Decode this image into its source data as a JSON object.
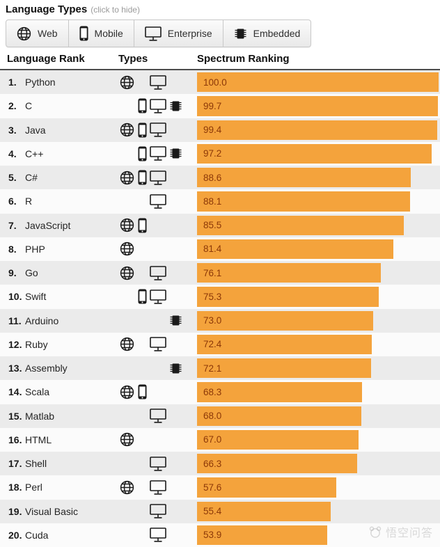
{
  "header": {
    "title": "Language Types",
    "subtitle": "(click to hide)"
  },
  "filters": [
    {
      "label": "Web",
      "icon": "web-icon"
    },
    {
      "label": "Mobile",
      "icon": "mobile-icon"
    },
    {
      "label": "Enterprise",
      "icon": "enterprise-icon"
    },
    {
      "label": "Embedded",
      "icon": "embedded-icon"
    }
  ],
  "columns": {
    "language_rank": "Language Rank",
    "types": "Types",
    "spectrum_ranking": "Spectrum Ranking"
  },
  "colors": {
    "bar": "#f4a33c",
    "bar_label": "#8c3808",
    "row_stripe": "#ebebeb",
    "row_plain": "#fbfbfb"
  },
  "watermark": {
    "text": "悟空问答"
  },
  "chart_data": {
    "type": "bar",
    "orientation": "horizontal",
    "title": "Spectrum Ranking",
    "xlabel": "",
    "ylabel": "",
    "xlim": [
      0,
      100
    ],
    "grid": false,
    "categories": [
      "Python",
      "C",
      "Java",
      "C++",
      "C#",
      "R",
      "JavaScript",
      "PHP",
      "Go",
      "Swift",
      "Arduino",
      "Ruby",
      "Assembly",
      "Scala",
      "Matlab",
      "HTML",
      "Shell",
      "Perl",
      "Visual Basic",
      "Cuda"
    ],
    "values": [
      100.0,
      99.7,
      99.4,
      97.2,
      88.6,
      88.1,
      85.5,
      81.4,
      76.1,
      75.3,
      73.0,
      72.4,
      72.1,
      68.3,
      68.0,
      67.0,
      66.3,
      57.6,
      55.4,
      53.9
    ],
    "rows": [
      {
        "rank": "1.",
        "name": "Python",
        "types": [
          "web",
          "enterprise"
        ],
        "value": 100.0
      },
      {
        "rank": "2.",
        "name": "C",
        "types": [
          "mobile",
          "enterprise",
          "embedded"
        ],
        "value": 99.7
      },
      {
        "rank": "3.",
        "name": "Java",
        "types": [
          "web",
          "mobile",
          "enterprise"
        ],
        "value": 99.4
      },
      {
        "rank": "4.",
        "name": "C++",
        "types": [
          "mobile",
          "enterprise",
          "embedded"
        ],
        "value": 97.2
      },
      {
        "rank": "5.",
        "name": "C#",
        "types": [
          "web",
          "mobile",
          "enterprise"
        ],
        "value": 88.6
      },
      {
        "rank": "6.",
        "name": "R",
        "types": [
          "enterprise"
        ],
        "value": 88.1
      },
      {
        "rank": "7.",
        "name": "JavaScript",
        "types": [
          "web",
          "mobile"
        ],
        "value": 85.5
      },
      {
        "rank": "8.",
        "name": "PHP",
        "types": [
          "web"
        ],
        "value": 81.4
      },
      {
        "rank": "9.",
        "name": "Go",
        "types": [
          "web",
          "enterprise"
        ],
        "value": 76.1
      },
      {
        "rank": "10.",
        "name": "Swift",
        "types": [
          "mobile",
          "enterprise"
        ],
        "value": 75.3
      },
      {
        "rank": "11.",
        "name": "Arduino",
        "types": [
          "embedded"
        ],
        "value": 73.0
      },
      {
        "rank": "12.",
        "name": "Ruby",
        "types": [
          "web",
          "enterprise"
        ],
        "value": 72.4
      },
      {
        "rank": "13.",
        "name": "Assembly",
        "types": [
          "embedded"
        ],
        "value": 72.1
      },
      {
        "rank": "14.",
        "name": "Scala",
        "types": [
          "web",
          "mobile"
        ],
        "value": 68.3
      },
      {
        "rank": "15.",
        "name": "Matlab",
        "types": [
          "enterprise"
        ],
        "value": 68.0
      },
      {
        "rank": "16.",
        "name": "HTML",
        "types": [
          "web"
        ],
        "value": 67.0
      },
      {
        "rank": "17.",
        "name": "Shell",
        "types": [
          "enterprise"
        ],
        "value": 66.3
      },
      {
        "rank": "18.",
        "name": "Perl",
        "types": [
          "web",
          "enterprise"
        ],
        "value": 57.6
      },
      {
        "rank": "19.",
        "name": "Visual Basic",
        "types": [
          "enterprise"
        ],
        "value": 55.4
      },
      {
        "rank": "20.",
        "name": "Cuda",
        "types": [
          "enterprise"
        ],
        "value": 53.9
      }
    ]
  }
}
